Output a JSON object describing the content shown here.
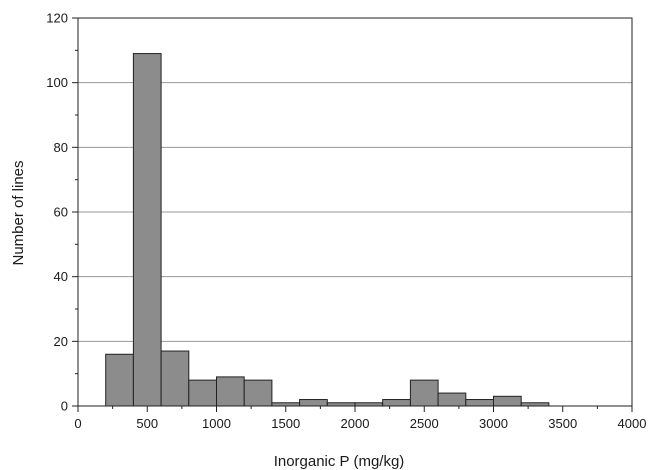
{
  "chart_data": {
    "type": "bar",
    "title": "",
    "xlabel": "Inorganic P (mg/kg)",
    "ylabel": "Number of lines",
    "xlim": [
      0,
      4000
    ],
    "ylim": [
      0,
      120
    ],
    "xticks": [
      0,
      500,
      1000,
      1500,
      2000,
      2500,
      3000,
      3500,
      4000
    ],
    "yticks": [
      0,
      20,
      40,
      60,
      80,
      100,
      120
    ],
    "grid": "horizontal",
    "legend": "none",
    "bar_color": "#8c8c8c",
    "bins": [
      {
        "x0": 200,
        "x1": 400,
        "value": 16
      },
      {
        "x0": 400,
        "x1": 600,
        "value": 109
      },
      {
        "x0": 600,
        "x1": 800,
        "value": 17
      },
      {
        "x0": 800,
        "x1": 1000,
        "value": 8
      },
      {
        "x0": 1000,
        "x1": 1200,
        "value": 9
      },
      {
        "x0": 1200,
        "x1": 1400,
        "value": 8
      },
      {
        "x0": 1400,
        "x1": 1600,
        "value": 1
      },
      {
        "x0": 1600,
        "x1": 1800,
        "value": 2
      },
      {
        "x0": 1800,
        "x1": 2000,
        "value": 1
      },
      {
        "x0": 2000,
        "x1": 2200,
        "value": 1
      },
      {
        "x0": 2200,
        "x1": 2400,
        "value": 2
      },
      {
        "x0": 2400,
        "x1": 2600,
        "value": 8
      },
      {
        "x0": 2600,
        "x1": 2800,
        "value": 4
      },
      {
        "x0": 2800,
        "x1": 3000,
        "value": 2
      },
      {
        "x0": 3000,
        "x1": 3200,
        "value": 3
      },
      {
        "x0": 3200,
        "x1": 3400,
        "value": 1
      }
    ]
  }
}
